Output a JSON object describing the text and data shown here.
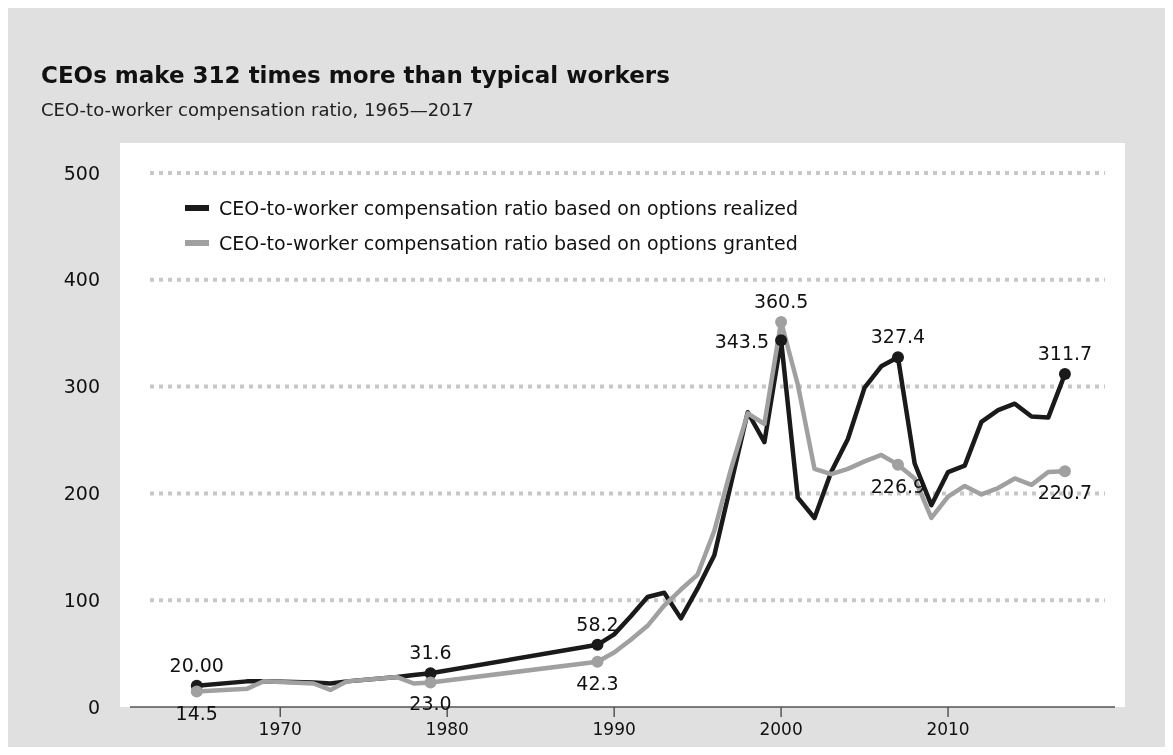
{
  "chart_data": {
    "type": "line",
    "title": "CEOs make 312 times more than typical workers",
    "subtitle": "CEO-to-worker compensation ratio,  1965—2017",
    "xlim": [
      1961,
      2020
    ],
    "xticks": [
      1970,
      1980,
      1990,
      2000,
      2010
    ],
    "ylim": [
      0,
      500
    ],
    "yticks": [
      0,
      100,
      200,
      300,
      400,
      500
    ],
    "grid": "y",
    "legend": "top left",
    "marker": "none",
    "line_style": "solid",
    "series": [
      {
        "name": "CEO-to-worker compensation ratio based on options realized",
        "color": "#1a1a1a",
        "x": [
          1965,
          1968,
          1969,
          1972,
          1973,
          1974,
          1977,
          1978,
          1979,
          1989,
          1990,
          1991,
          1992,
          1993,
          1994,
          1995,
          1996,
          1997,
          1998,
          1999,
          2000,
          2001,
          2002,
          2003,
          2004,
          2005,
          2006,
          2007,
          2008,
          2009,
          2010,
          2011,
          2012,
          2013,
          2014,
          2015,
          2016,
          2017
        ],
        "values": [
          20.0,
          24,
          24,
          23,
          22,
          24,
          28,
          30,
          31.6,
          58.2,
          68,
          85,
          103,
          107,
          83,
          111,
          142,
          209,
          276,
          248,
          343.5,
          196,
          177,
          220,
          251,
          299,
          319,
          327.4,
          228,
          189,
          220,
          226,
          267,
          278,
          284,
          272,
          271,
          311.7
        ]
      },
      {
        "name": "CEO-to-worker compensation ratio based on options granted",
        "color": "#a0a0a0",
        "x": [
          1965,
          1968,
          1969,
          1972,
          1973,
          1974,
          1977,
          1978,
          1979,
          1989,
          1990,
          1991,
          1992,
          1993,
          1994,
          1995,
          1996,
          1997,
          1998,
          1999,
          2000,
          2001,
          2002,
          2003,
          2004,
          2005,
          2006,
          2007,
          2008,
          2009,
          2010,
          2011,
          2012,
          2013,
          2014,
          2015,
          2016,
          2017
        ],
        "values": [
          14.5,
          17,
          24,
          22,
          16,
          24,
          28,
          22,
          23.0,
          42.3,
          51,
          63,
          76,
          95,
          110,
          124,
          165,
          223,
          275,
          265,
          360.5,
          302,
          223,
          218,
          223,
          230,
          236,
          226.9,
          214,
          177,
          197,
          207,
          199,
          205,
          214,
          208,
          220,
          220.7
        ]
      }
    ],
    "annotations": [
      {
        "text": "20.00",
        "x": 1965,
        "y": 20.0
      },
      {
        "text": "14.5",
        "x": 1965,
        "y": 14.5
      },
      {
        "text": "31.6",
        "x": 1979,
        "y": 31.6
      },
      {
        "text": "23.0",
        "x": 1979,
        "y": 23.0
      },
      {
        "text": "58.2",
        "x": 1989,
        "y": 58.2
      },
      {
        "text": "42.3",
        "x": 1989,
        "y": 42.3
      },
      {
        "text": "360.5",
        "x": 2000,
        "y": 360.5
      },
      {
        "text": "343.5",
        "x": 2000,
        "y": 343.5
      },
      {
        "text": "327.4",
        "x": 2007,
        "y": 327.4
      },
      {
        "text": "226.9",
        "x": 2007,
        "y": 226.9
      },
      {
        "text": "311.7",
        "x": 2017,
        "y": 311.7
      },
      {
        "text": "220.7",
        "x": 2017,
        "y": 220.7
      }
    ]
  }
}
